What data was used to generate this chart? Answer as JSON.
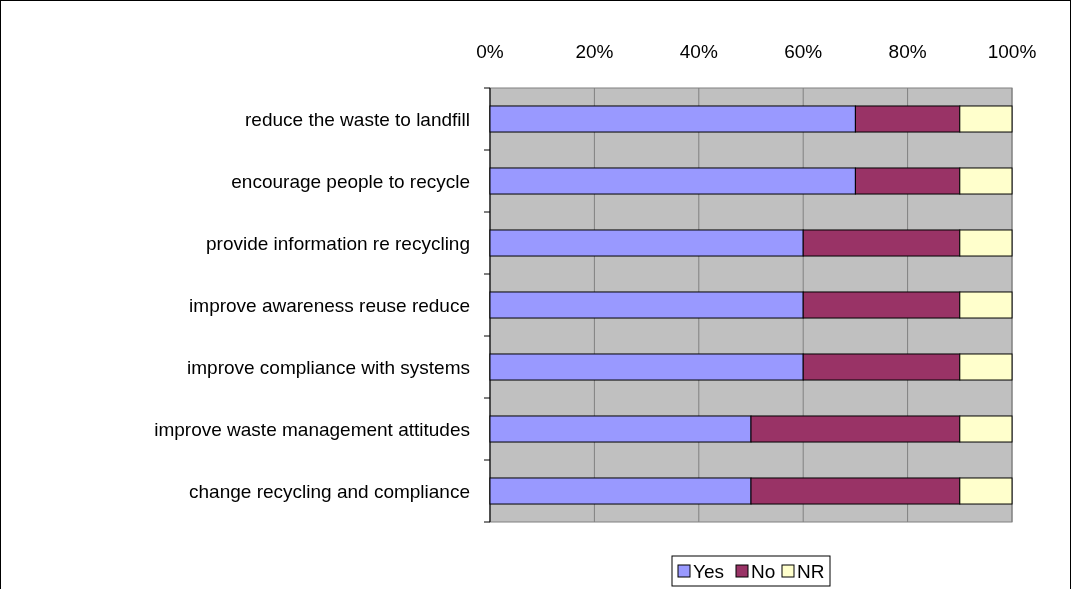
{
  "chart_data": {
    "type": "bar",
    "orientation": "horizontal",
    "stacked": true,
    "categories": [
      "reduce the waste to landfill",
      "encourage people to recycle",
      "provide information re recycling",
      "improve awareness reuse reduce",
      "improve compliance with systems",
      "improve waste management attitudes",
      "change recycling and compliance"
    ],
    "series": [
      {
        "name": "Yes",
        "color": "#9999ff",
        "values": [
          70,
          70,
          60,
          60,
          60,
          50,
          50
        ]
      },
      {
        "name": "No",
        "color": "#993366",
        "values": [
          20,
          20,
          30,
          30,
          30,
          40,
          40
        ]
      },
      {
        "name": "NR",
        "color": "#ffffcc",
        "values": [
          10,
          10,
          10,
          10,
          10,
          10,
          10
        ]
      }
    ],
    "xlim": [
      0,
      100
    ],
    "xticks": [
      {
        "value": 0,
        "label": "0%"
      },
      {
        "value": 20,
        "label": "20%"
      },
      {
        "value": 40,
        "label": "40%"
      },
      {
        "value": 60,
        "label": "60%"
      },
      {
        "value": 80,
        "label": "80%"
      },
      {
        "value": 100,
        "label": "100%"
      }
    ],
    "grid": "x",
    "legend": "bottom"
  }
}
